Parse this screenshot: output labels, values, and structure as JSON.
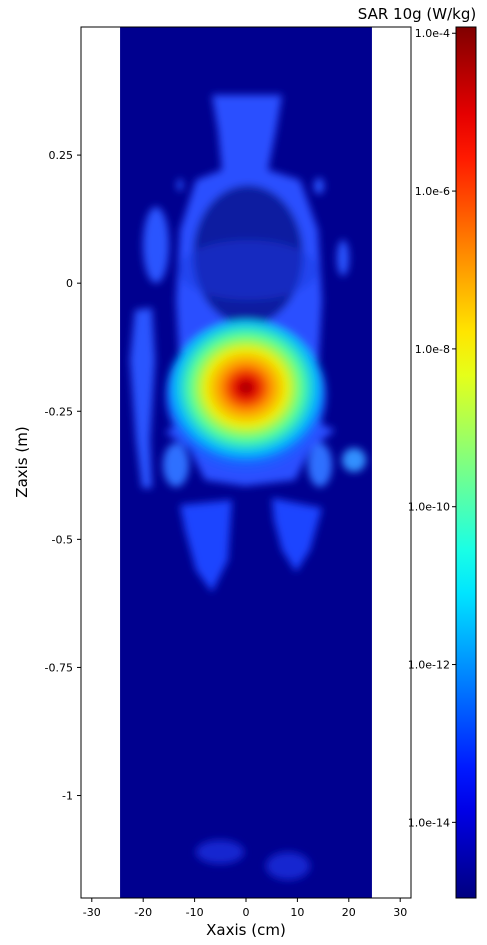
{
  "chart_data": {
    "type": "heatmap",
    "xlabel": "Xaxis (cm)",
    "ylabel": "Zaxis (m)",
    "colorbar_label": "SAR 10g (W/kg)",
    "xlim": [
      -32.1,
      32.1
    ],
    "xticks": [
      -30,
      -20,
      -10,
      0,
      10,
      20,
      30
    ],
    "ylim": [
      -1.2,
      0.5
    ],
    "yticks": [
      0.25,
      0,
      -0.25,
      -0.5,
      -0.75,
      -1
    ],
    "image_extent_x": [
      -24.5,
      24.5
    ],
    "colormap": "jet",
    "colorbar_scale": "log",
    "clim": [
      1.1e-15,
      0.00012
    ],
    "cticks": [
      {
        "value": 0.0001,
        "label": "1.0e-4"
      },
      {
        "value": 1e-06,
        "label": "1.0e-6"
      },
      {
        "value": 1e-08,
        "label": "1.0e-8"
      },
      {
        "value": 1e-10,
        "label": "1.0e-10"
      },
      {
        "value": 1e-12,
        "label": "1.0e-12"
      },
      {
        "value": 1e-14,
        "label": "1.0e-14"
      }
    ]
  }
}
